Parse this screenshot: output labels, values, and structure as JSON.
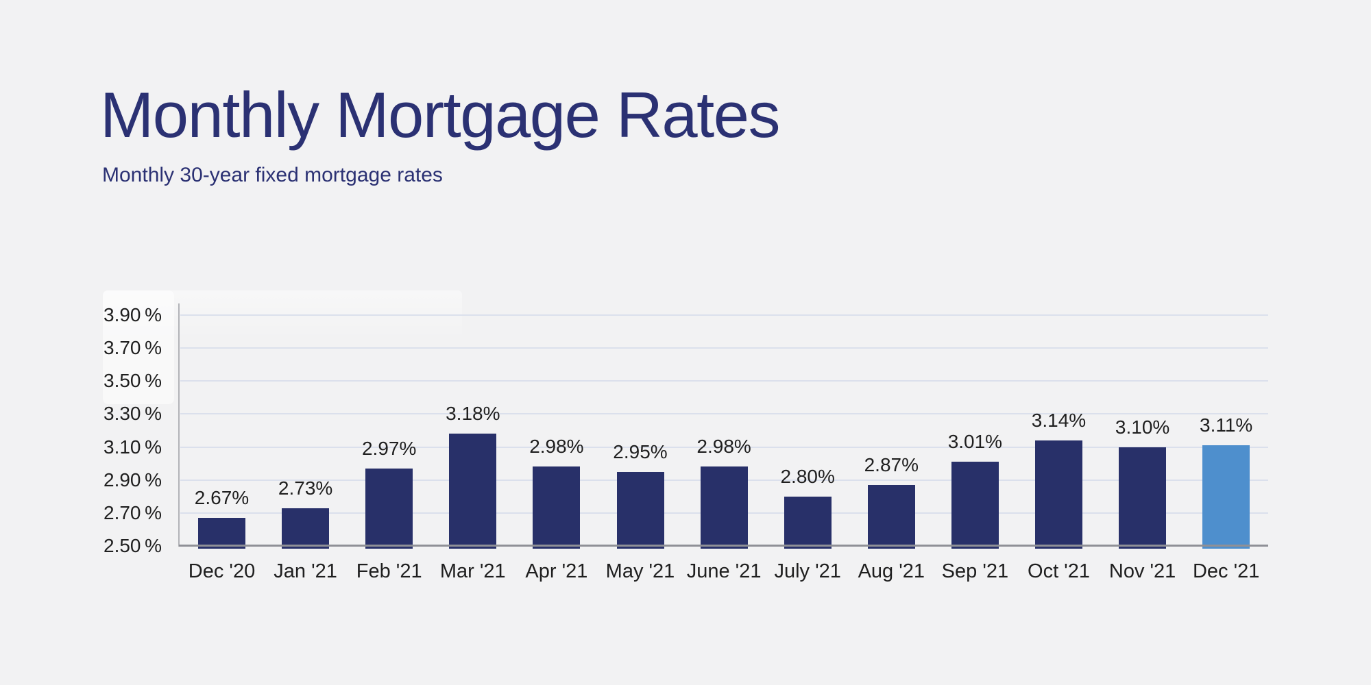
{
  "header": {
    "title": "Monthly Mortgage Rates",
    "subtitle": "Monthly 30-year fixed mortgage rates"
  },
  "colors": {
    "background": "#f2f2f3",
    "title_text": "#2b3173",
    "label_text": "#1f1f1f",
    "gridline": "#dbe0ec",
    "y_axis_line": "#b2b3b8",
    "x_axis_line": "#8f9096",
    "bar_navy": "#283069",
    "bar_highlight": "#4e8fcd"
  },
  "chart_data": {
    "type": "bar",
    "title": "Monthly Mortgage Rates",
    "subtitle": "Monthly 30-year fixed mortgage rates",
    "categories": [
      "Dec '20",
      "Jan '21",
      "Feb '21",
      "Mar '21",
      "Apr '21",
      "May '21",
      "June '21",
      "July '21",
      "Aug '21",
      "Sep '21",
      "Oct '21",
      "Nov '21",
      "Dec '21"
    ],
    "values": [
      2.67,
      2.73,
      2.97,
      3.18,
      2.98,
      2.95,
      2.98,
      2.8,
      2.87,
      3.01,
      3.14,
      3.1,
      3.11
    ],
    "value_labels": [
      "2.67%",
      "2.73%",
      "2.97%",
      "3.18%",
      "2.98%",
      "2.95%",
      "2.98%",
      "2.80%",
      "2.87%",
      "3.01%",
      "3.14%",
      "3.10%",
      "3.11%"
    ],
    "y_tick_labels": [
      "2.50 %",
      "2.70 %",
      "2.90 %",
      "3.10 %",
      "3.30 %",
      "3.50 %",
      "3.70 %",
      "3.90 %"
    ],
    "ylim": [
      2.5,
      3.9
    ],
    "ytick_step": 0.2,
    "grid": "horizontal",
    "legend": "none",
    "highlighted_category": "Dec '21",
    "xlabel": "",
    "ylabel": ""
  }
}
